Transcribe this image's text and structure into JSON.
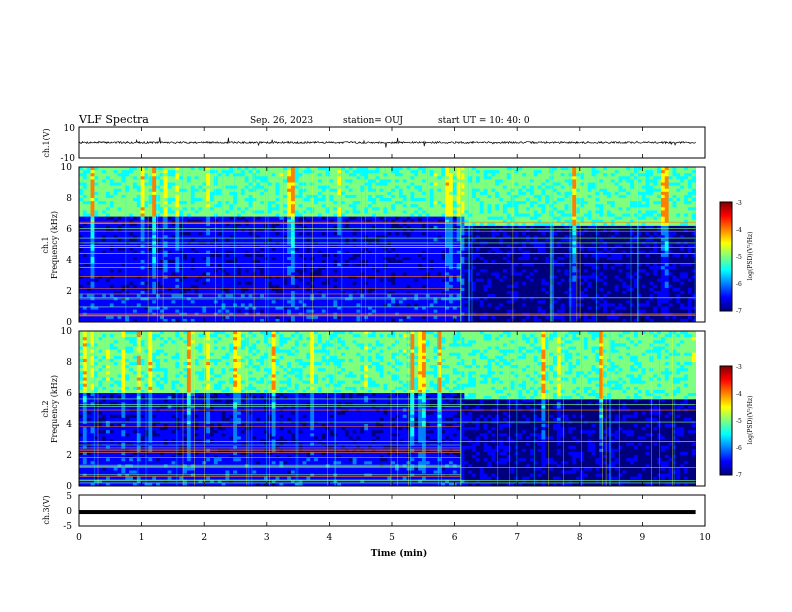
{
  "header": {
    "title": "VLF Spectra",
    "date": "Sep. 26, 2023",
    "station": "station= OUJ",
    "start_ut": "start  UT =   10: 40: 0"
  },
  "chart_data": [
    {
      "type": "line",
      "panel": "ch1-waveform",
      "ylabel": "ch.1(V)",
      "ylim": [
        -10,
        10
      ],
      "y_tick_labels": [
        "10",
        "-10"
      ],
      "x_range_min": [
        0,
        10
      ],
      "signal_extent_min": [
        0,
        9.85
      ],
      "baseline_v": 0,
      "approx_amplitude_v": 2
    },
    {
      "type": "heatmap",
      "panel": "ch1-spectrogram",
      "ylabel": "ch.1\nFrequency (kHz)",
      "ylim_khz": [
        0,
        10
      ],
      "y_tick_labels": [
        "0",
        "2",
        "4",
        "6",
        "8",
        "10"
      ],
      "x_range_min": [
        0,
        10
      ],
      "data_extent_min": [
        0,
        9.85
      ],
      "colorbar": {
        "label": "log(PSD)(V²/Hz)",
        "range": [
          -7,
          -3
        ],
        "tick_labels": [
          "-3",
          "-4",
          "-5",
          "-6",
          "-7"
        ]
      },
      "regime_change_min": 6.1,
      "noise_floor_top_khz_before": 6.8,
      "noise_floor_top_khz_after": 6.2
    },
    {
      "type": "heatmap",
      "panel": "ch2-spectrogram",
      "ylabel": "ch.2\nFrequency (kHz)",
      "ylim_khz": [
        0,
        10
      ],
      "y_tick_labels": [
        "0",
        "2",
        "4",
        "6",
        "8",
        "10"
      ],
      "x_range_min": [
        0,
        10
      ],
      "data_extent_min": [
        0,
        9.85
      ],
      "colorbar": {
        "label": "log(PSD)(V²/Hz)",
        "range": [
          -7,
          -3
        ],
        "tick_labels": [
          "-3",
          "-4",
          "-5",
          "-6",
          "-7"
        ]
      },
      "regime_change_min": 6.1,
      "noise_floor_top_khz_before": 6.0,
      "noise_floor_top_khz_after": 5.5
    },
    {
      "type": "line",
      "panel": "ch3-waveform",
      "ylabel": "ch.3(V)",
      "ylim": [
        -5,
        5
      ],
      "y_tick_labels": [
        "5",
        "0",
        "-5"
      ],
      "x_range_min": [
        0,
        10
      ],
      "signal_extent_min": [
        0,
        9.85
      ],
      "baseline_v": -0.5
    }
  ],
  "x_axis": {
    "label": "Time  (min)",
    "ticks": [
      0,
      1,
      2,
      3,
      4,
      5,
      6,
      7,
      8,
      9,
      10
    ],
    "tick_labels": [
      "0",
      "1",
      "2",
      "3",
      "4",
      "5",
      "6",
      "7",
      "8",
      "9",
      "10"
    ]
  },
  "colors": {
    "colormap": [
      "#00007f",
      "#0000ff",
      "#007fff",
      "#00ffff",
      "#7fff7f",
      "#ffff00",
      "#ff7f00",
      "#ff0000",
      "#7f0000"
    ],
    "trace": "#000000"
  }
}
